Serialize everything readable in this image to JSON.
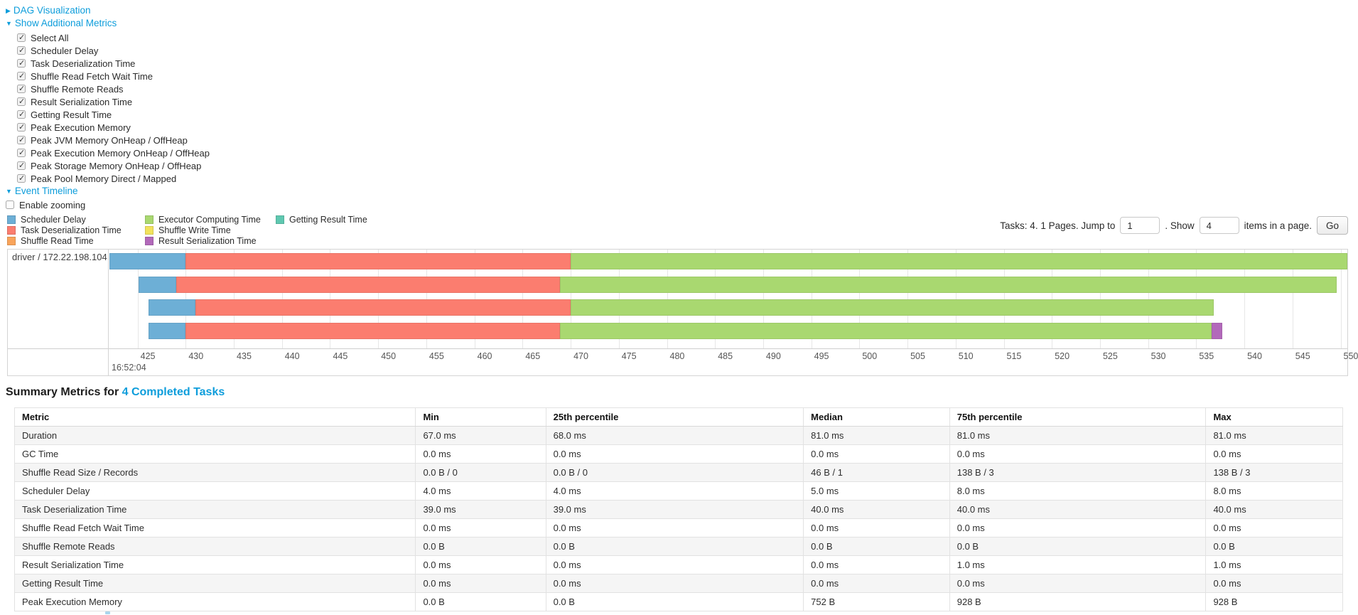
{
  "colors": {
    "link": "#0d9ddb",
    "scheduler_delay": "#6DAFD6",
    "task_deserialization_time": "#FB7D6F",
    "shuffle_read_time": "#F9A45B",
    "executor_computing_time": "#A9D870",
    "shuffle_write_time": "#F2E25D",
    "result_serialization_time": "#B269BA",
    "getting_result_time": "#5FC8B0"
  },
  "sections": {
    "dag": {
      "label": "DAG Visualization",
      "state": "collapsed"
    },
    "metrics": {
      "label": "Show Additional Metrics",
      "state": "expanded"
    },
    "timeline": {
      "label": "Event Timeline",
      "state": "expanded"
    }
  },
  "metric_checkboxes": [
    {
      "label": "Select All",
      "checked": true
    },
    {
      "label": "Scheduler Delay",
      "checked": true
    },
    {
      "label": "Task Deserialization Time",
      "checked": true
    },
    {
      "label": "Shuffle Read Fetch Wait Time",
      "checked": true
    },
    {
      "label": "Shuffle Remote Reads",
      "checked": true
    },
    {
      "label": "Result Serialization Time",
      "checked": true
    },
    {
      "label": "Getting Result Time",
      "checked": true
    },
    {
      "label": "Peak Execution Memory",
      "checked": true
    },
    {
      "label": "Peak JVM Memory OnHeap / OffHeap",
      "checked": true
    },
    {
      "label": "Peak Execution Memory OnHeap / OffHeap",
      "checked": true
    },
    {
      "label": "Peak Storage Memory OnHeap / OffHeap",
      "checked": true
    },
    {
      "label": "Peak Pool Memory Direct / Mapped",
      "checked": true
    }
  ],
  "enable_zooming": {
    "label": "Enable zooming",
    "checked": false
  },
  "legend": {
    "columns": [
      [
        {
          "key": "scheduler_delay",
          "label": "Scheduler Delay"
        },
        {
          "key": "task_deserialization_time",
          "label": "Task Deserialization Time"
        },
        {
          "key": "shuffle_read_time",
          "label": "Shuffle Read Time"
        }
      ],
      [
        {
          "key": "executor_computing_time",
          "label": "Executor Computing Time"
        },
        {
          "key": "shuffle_write_time",
          "label": "Shuffle Write Time"
        },
        {
          "key": "result_serialization_time",
          "label": "Result Serialization Time"
        }
      ],
      [
        {
          "key": "getting_result_time",
          "label": "Getting Result Time"
        }
      ]
    ]
  },
  "pagination": {
    "prefix": "Tasks: 4. 1 Pages. Jump to",
    "jump_value": "1",
    "mid": ". Show",
    "show_value": "4",
    "suffix": "items in a page.",
    "go_label": "Go"
  },
  "timeline_chart": {
    "type": "timeline",
    "group_label": "driver / 172.22.198.104",
    "axis": {
      "domain_start": 422,
      "domain_end": 550.7,
      "ticks": [
        425,
        430,
        435,
        440,
        445,
        450,
        455,
        460,
        465,
        470,
        475,
        480,
        485,
        490,
        495,
        500,
        505,
        510,
        515,
        520,
        525,
        530,
        535,
        540,
        545,
        550
      ],
      "major_label": "16:52:04"
    },
    "bars": [
      {
        "segments": [
          {
            "type": "scheduler_delay",
            "start": 422.1,
            "end": 430.0
          },
          {
            "type": "task_deserialization_time",
            "start": 430.0,
            "end": 470.0
          },
          {
            "type": "executor_computing_time",
            "start": 470.0,
            "end": 550.7
          }
        ]
      },
      {
        "segments": [
          {
            "type": "scheduler_delay",
            "start": 425.1,
            "end": 429.0
          },
          {
            "type": "task_deserialization_time",
            "start": 429.0,
            "end": 468.9
          },
          {
            "type": "executor_computing_time",
            "start": 468.9,
            "end": 549.6
          }
        ]
      },
      {
        "segments": [
          {
            "type": "scheduler_delay",
            "start": 426.1,
            "end": 431.0
          },
          {
            "type": "task_deserialization_time",
            "start": 431.0,
            "end": 470.0
          },
          {
            "type": "executor_computing_time",
            "start": 470.0,
            "end": 536.8
          }
        ]
      },
      {
        "segments": [
          {
            "type": "scheduler_delay",
            "start": 426.1,
            "end": 430.0
          },
          {
            "type": "task_deserialization_time",
            "start": 430.0,
            "end": 468.9
          },
          {
            "type": "executor_computing_time",
            "start": 468.9,
            "end": 536.6
          },
          {
            "type": "result_serialization_time",
            "start": 536.6,
            "end": 537.7
          }
        ]
      }
    ]
  },
  "summary": {
    "title_prefix": "Summary Metrics for ",
    "title_link": "4 Completed Tasks",
    "table": {
      "columns": [
        "Metric",
        "Min",
        "25th percentile",
        "Median",
        "75th percentile",
        "Max"
      ],
      "col_widths": [
        "30.2%",
        "9.8%",
        "19.4%",
        "11.0%",
        "19.3%",
        "10.3%"
      ],
      "rows": [
        [
          "Duration",
          "67.0 ms",
          "68.0 ms",
          "81.0 ms",
          "81.0 ms",
          "81.0 ms"
        ],
        [
          "GC Time",
          "0.0 ms",
          "0.0 ms",
          "0.0 ms",
          "0.0 ms",
          "0.0 ms"
        ],
        [
          "Shuffle Read Size / Records",
          "0.0 B / 0",
          "0.0 B / 0",
          "46 B / 1",
          "138 B / 3",
          "138 B / 3"
        ],
        [
          "Scheduler Delay",
          "4.0 ms",
          "4.0 ms",
          "5.0 ms",
          "8.0 ms",
          "8.0 ms"
        ],
        [
          "Task Deserialization Time",
          "39.0 ms",
          "39.0 ms",
          "40.0 ms",
          "40.0 ms",
          "40.0 ms"
        ],
        [
          "Shuffle Read Fetch Wait Time",
          "0.0 ms",
          "0.0 ms",
          "0.0 ms",
          "0.0 ms",
          "0.0 ms"
        ],
        [
          "Shuffle Remote Reads",
          "0.0 B",
          "0.0 B",
          "0.0 B",
          "0.0 B",
          "0.0 B"
        ],
        [
          "Result Serialization Time",
          "0.0 ms",
          "0.0 ms",
          "0.0 ms",
          "1.0 ms",
          "1.0 ms"
        ],
        [
          "Getting Result Time",
          "0.0 ms",
          "0.0 ms",
          "0.0 ms",
          "0.0 ms",
          "0.0 ms"
        ],
        [
          "Peak Execution Memory",
          "0.0 B",
          "0.0 B",
          "752 B",
          "928 B",
          "928 B"
        ]
      ]
    }
  }
}
